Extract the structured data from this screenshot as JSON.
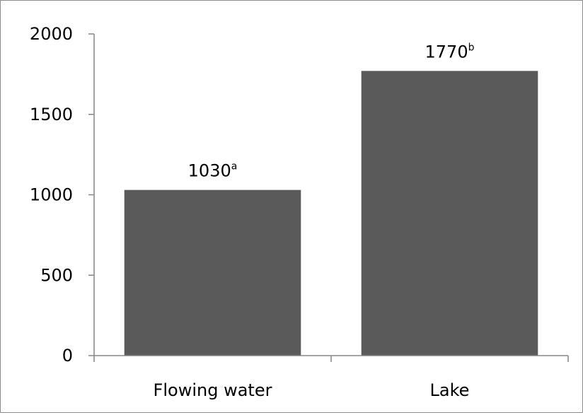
{
  "chart_data": {
    "type": "bar",
    "categories": [
      "Flowing water",
      "Lake"
    ],
    "values": [
      1030,
      1770
    ],
    "data_labels": [
      {
        "value": "1030",
        "superscript": "a"
      },
      {
        "value": "1770",
        "superscript": "b"
      }
    ],
    "ylim": [
      0,
      2000
    ],
    "yticks": [
      0,
      500,
      1000,
      1500,
      2000
    ],
    "grid": false,
    "legend": "none",
    "bar_color": "#5a5a5a",
    "axis_color": "#868686"
  }
}
